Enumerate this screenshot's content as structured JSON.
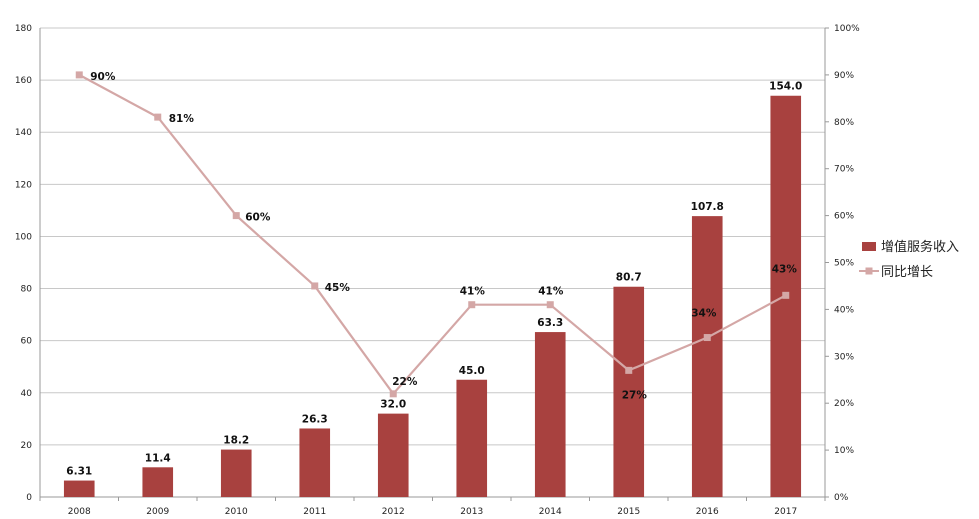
{
  "chart_data": {
    "type": "bar",
    "categories": [
      "2008",
      "2009",
      "2010",
      "2011",
      "2012",
      "2013",
      "2014",
      "2015",
      "2016",
      "2017"
    ],
    "series": [
      {
        "name": "增值服务收入",
        "type": "bar",
        "axis": "left",
        "color": "#a8413f",
        "values": [
          6.31,
          11.4,
          18.2,
          26.3,
          32.0,
          45.0,
          63.3,
          80.7,
          107.8,
          154.0
        ],
        "labels": [
          "6.31",
          "11.4",
          "18.2",
          "26.3",
          "32.0",
          "45.0",
          "63.3",
          "80.7",
          "107.8",
          "154.0"
        ]
      },
      {
        "name": "同比增长",
        "type": "line",
        "axis": "right",
        "color": "#d4a7a6",
        "values": [
          90,
          81,
          60,
          45,
          22,
          41,
          41,
          27,
          34,
          43
        ],
        "labels": [
          "90%",
          "81%",
          "60%",
          "45%",
          "22%",
          "41%",
          "41%",
          "27%",
          "34%",
          "43%"
        ]
      }
    ],
    "y_left": {
      "ylim": [
        0,
        180
      ],
      "ticks": [
        "0",
        "20",
        "40",
        "60",
        "80",
        "100",
        "120",
        "140",
        "160",
        "180"
      ]
    },
    "y_right": {
      "ylim": [
        0,
        100
      ],
      "ticks": [
        "0%",
        "10%",
        "20%",
        "30%",
        "40%",
        "50%",
        "60%",
        "70%",
        "80%",
        "90%",
        "100%"
      ]
    },
    "grid": true,
    "legend_position": "right"
  }
}
